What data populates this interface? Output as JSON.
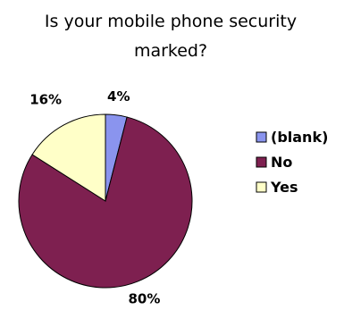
{
  "chart_data": {
    "type": "pie",
    "title_lines": [
      "Is your mobile phone security",
      "marked?"
    ],
    "legend_position": "right",
    "slices": [
      {
        "label": "(blank)",
        "value": 4,
        "color": "#8a94ee"
      },
      {
        "label": "No",
        "value": 80,
        "color": "#7e2050"
      },
      {
        "label": "Yes",
        "value": 16,
        "color": "#ffffc8"
      }
    ],
    "data_labels": [
      "4%",
      "80%",
      "16%"
    ]
  }
}
